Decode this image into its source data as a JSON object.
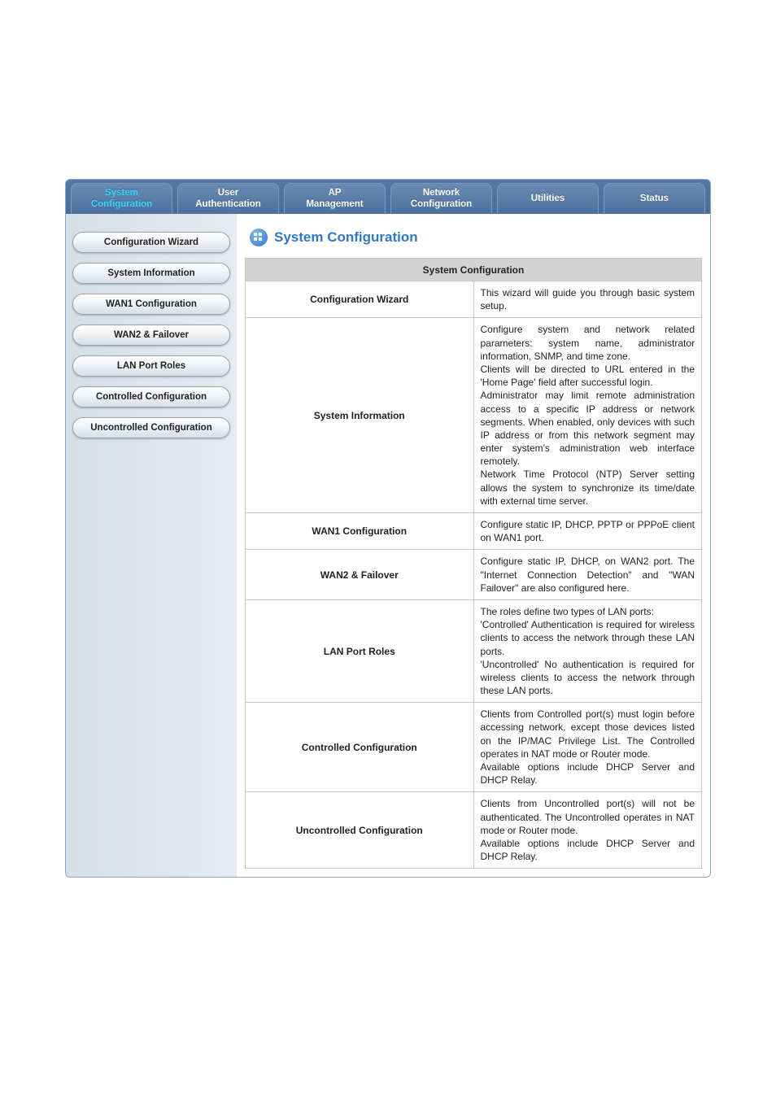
{
  "colors": {
    "tab_bg_start": "#6a8bb4",
    "tab_bg_end": "#4b709d",
    "tab_border": "#7c98bb",
    "tab_text": "#ffffff",
    "tab_text_active": "#3bd5ff",
    "sidebar_bg_start": "#d6dee6",
    "sidebar_bg_end": "#e6ebf1",
    "side_btn_border": "#9aa5b2",
    "heading_color": "#2f77cc",
    "table_border": "#c6c6c6",
    "table_header_bg": "#d3d3d3",
    "icon_bg_start": "#7fbaf2",
    "icon_bg_end": "#2f77cc"
  },
  "top_tabs": [
    {
      "label": "System\nConfiguration",
      "active": true
    },
    {
      "label": "User\nAuthentication",
      "active": false
    },
    {
      "label": "AP\nManagement",
      "active": false
    },
    {
      "label": "Network\nConfiguration",
      "active": false
    },
    {
      "label": "Utilities",
      "active": false
    },
    {
      "label": "Status",
      "active": false
    }
  ],
  "sidebar": {
    "items": [
      {
        "label": "Configuration Wizard"
      },
      {
        "label": "System Information"
      },
      {
        "label": "WAN1 Configuration"
      },
      {
        "label": "WAN2 & Failover"
      },
      {
        "label": "LAN Port Roles"
      },
      {
        "label": "Controlled Configuration"
      },
      {
        "label": "Uncontrolled Configuration"
      }
    ]
  },
  "page": {
    "heading": "System Configuration",
    "table_title": "System Configuration",
    "rows": [
      {
        "label": "Configuration Wizard",
        "desc": "This wizard will guide you through basic system setup."
      },
      {
        "label": "System Information",
        "desc": "Configure system and network related parameters: system name, administrator information, SNMP, and time zone.\nClients will be directed to URL entered in the 'Home Page' field after successful login.\nAdministrator may limit remote administration access to a specific IP address or network segments. When enabled, only devices with such IP address or from this network segment may enter system's administration web interface remotely.\nNetwork Time Protocol (NTP) Server setting allows the system to synchronize its time/date with external time server."
      },
      {
        "label": "WAN1 Configuration",
        "desc": "Configure static IP, DHCP, PPTP or PPPoE client on WAN1 port."
      },
      {
        "label": "WAN2 & Failover",
        "desc": "Configure static IP, DHCP, on WAN2 port. The \"Internet Connection Detection\" and \"WAN Failover\" are also configured here."
      },
      {
        "label": "LAN Port Roles",
        "desc": "The roles define two types of LAN ports:\n'Controlled' Authentication is required for wireless clients to access the network through these LAN ports.\n'Uncontrolled' No authentication is required for wireless clients to access the network through these LAN ports."
      },
      {
        "label": "Controlled Configuration",
        "desc": "Clients from Controlled port(s) must login before accessing network, except those devices listed on the IP/MAC Privilege List. The Controlled operates in NAT mode or Router mode.\nAvailable options include DHCP Server and DHCP Relay."
      },
      {
        "label": "Uncontrolled Configuration",
        "desc": "Clients from Uncontrolled port(s) will not be authenticated. The Uncontrolled operates in NAT mode or Router mode.\nAvailable options include DHCP Server and DHCP Relay."
      }
    ]
  }
}
